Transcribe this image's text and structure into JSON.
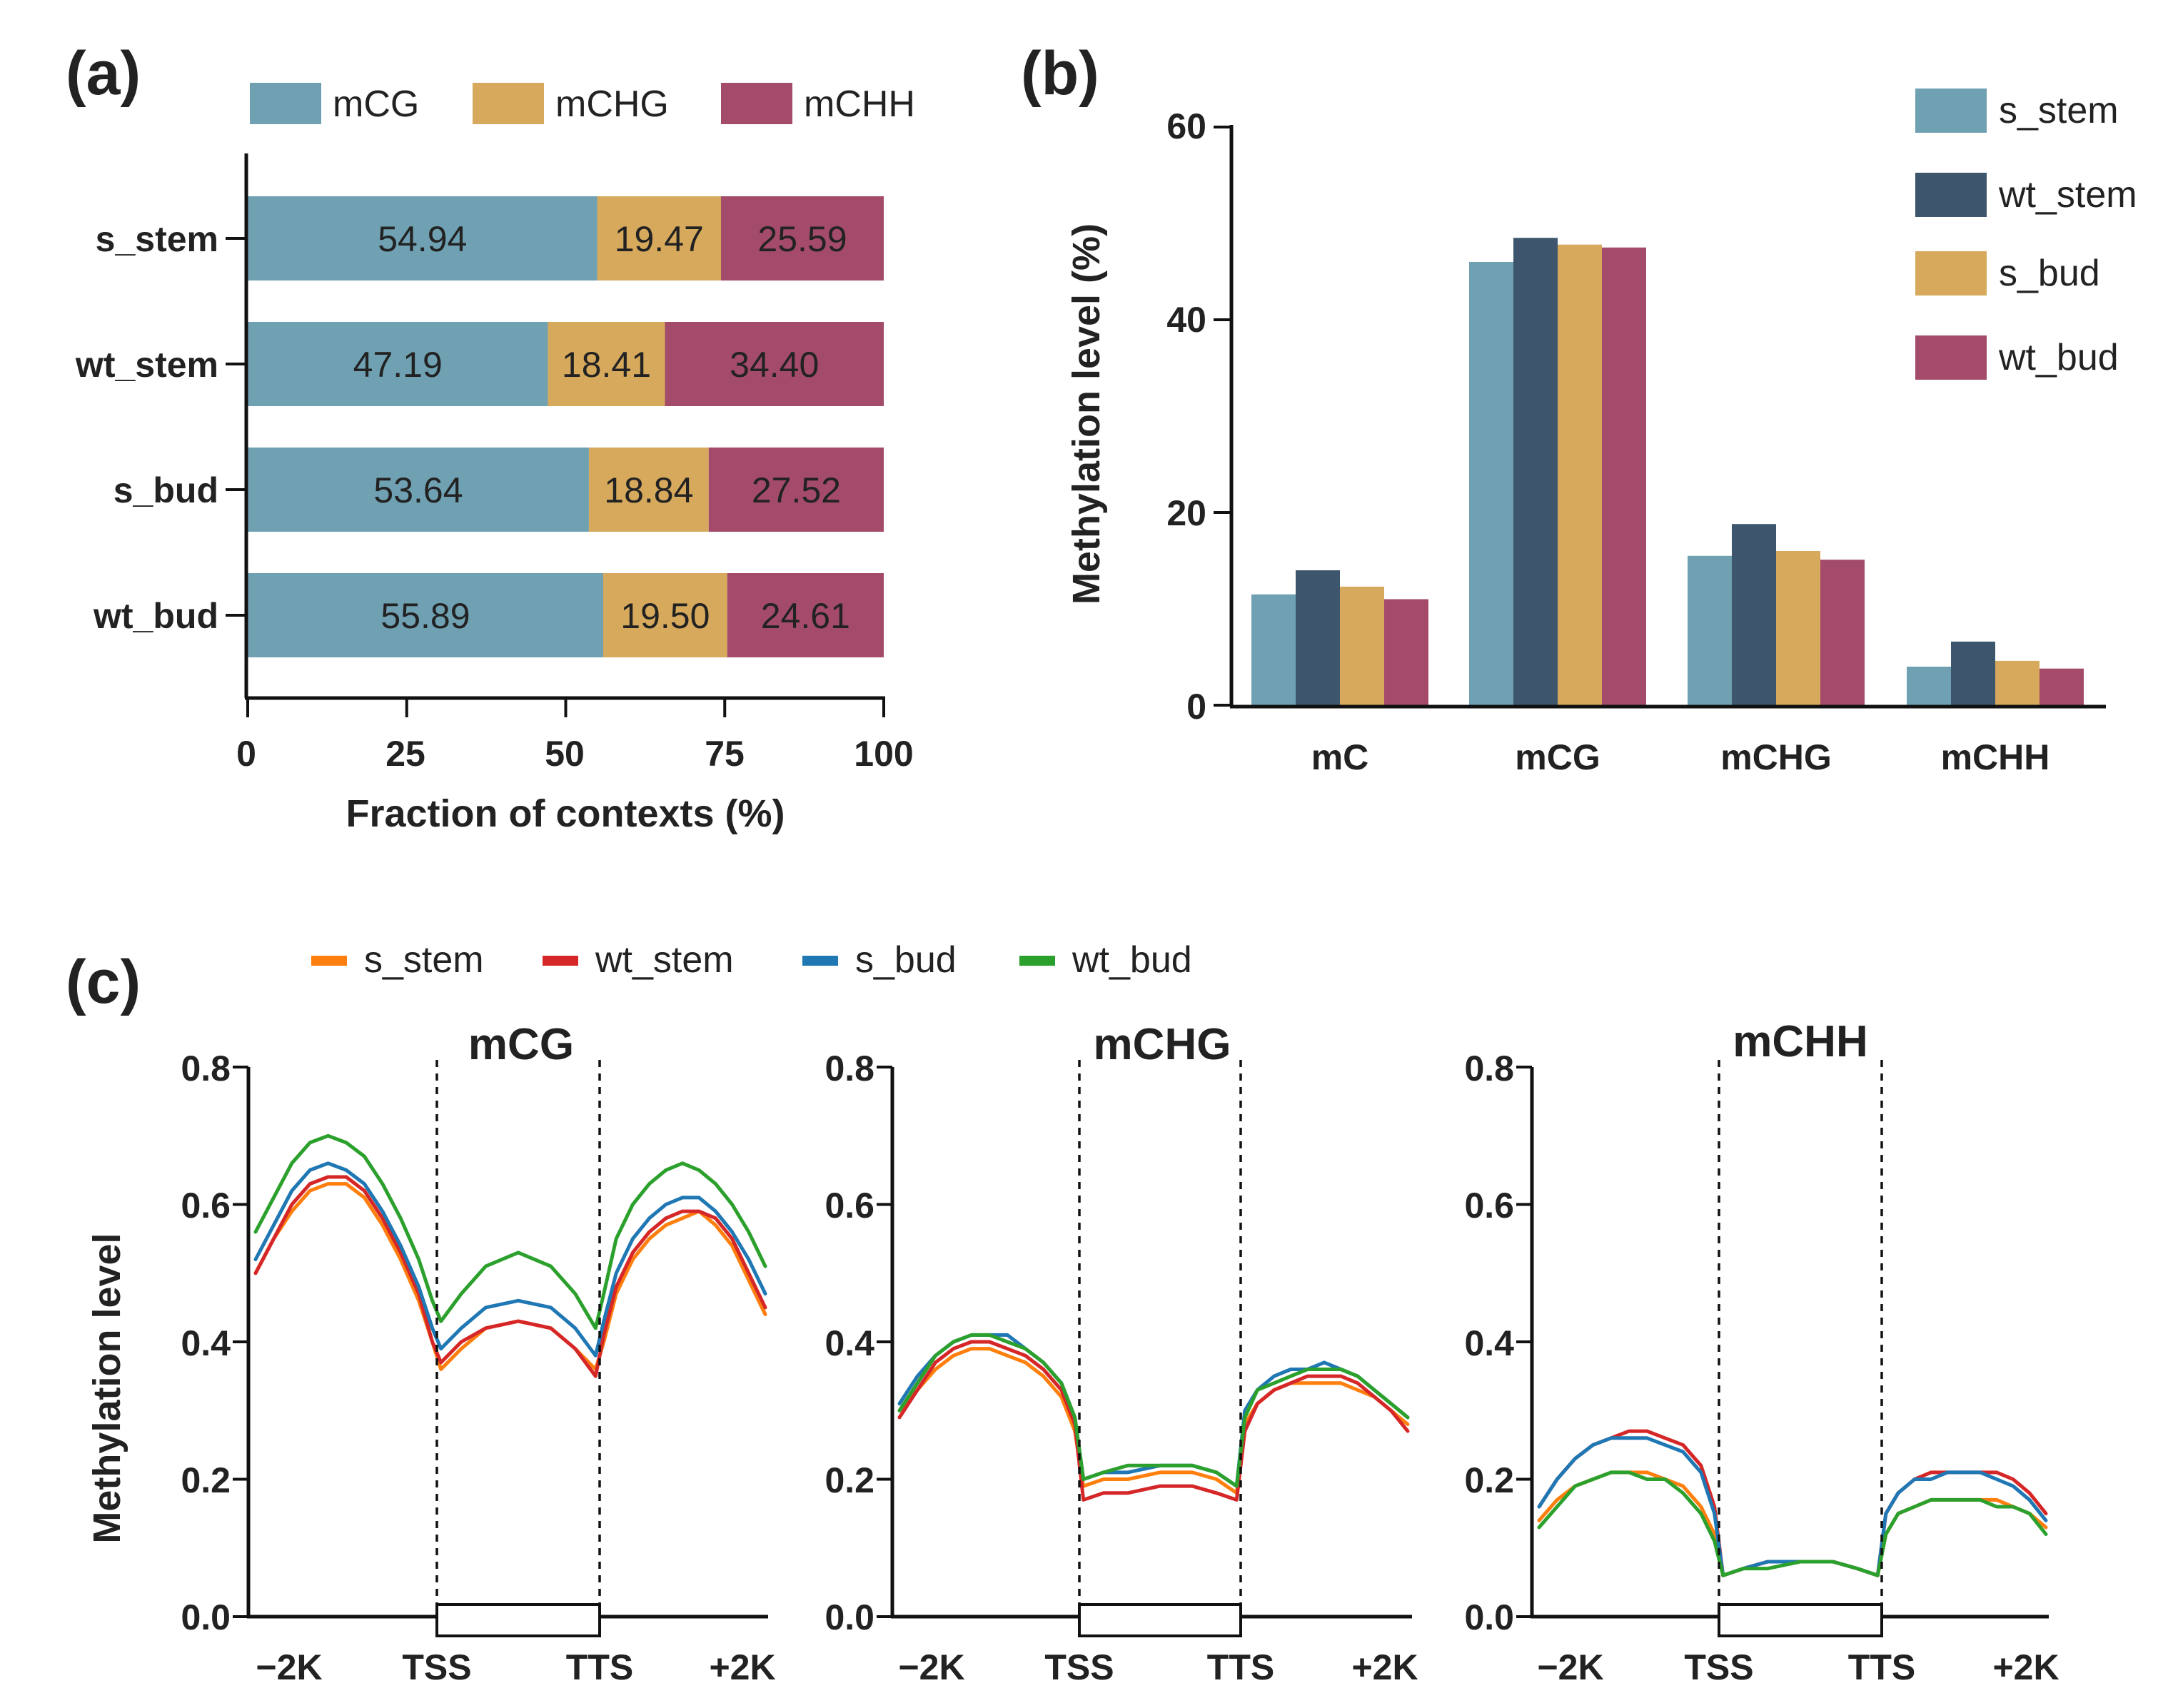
{
  "colors": {
    "mCG": "#6fa1b3",
    "mCHG": "#d6a95c",
    "mCHH": "#a44b6b",
    "s_stem": "#6fa1b3",
    "wt_stem": "#3d566d",
    "s_bud": "#d6a95c",
    "wt_bud": "#a44b6b",
    "line_s_stem": "#ff7f0e",
    "line_wt_stem": "#d62728",
    "line_s_bud": "#1f77b4",
    "line_wt_bud": "#2ca02c"
  },
  "chart_data": [
    {
      "panel": "(a)",
      "type": "bar",
      "orientation": "horizontal",
      "stacked": true,
      "categories": [
        "s_stem",
        "wt_stem",
        "s_bud",
        "wt_bud"
      ],
      "series": [
        {
          "name": "mCG",
          "values": [
            54.94,
            47.19,
            53.64,
            55.89
          ],
          "labels": [
            "54.94",
            "47.19",
            "53.64",
            "55.89"
          ]
        },
        {
          "name": "mCHG",
          "values": [
            19.47,
            18.41,
            18.84,
            19.5
          ],
          "labels": [
            "19.47",
            "18.41",
            "18.84",
            "19.50"
          ]
        },
        {
          "name": "mCHH",
          "values": [
            25.59,
            34.4,
            27.52,
            24.61
          ],
          "labels": [
            "25.59",
            "34.40",
            "27.52",
            "24.61"
          ]
        }
      ],
      "xlabel": "Fraction of contexts (%)",
      "xlim": [
        0,
        100
      ],
      "xticks": [
        "0",
        "25",
        "50",
        "75",
        "100"
      ],
      "legend": "top"
    },
    {
      "panel": "(b)",
      "type": "bar",
      "categories": [
        "mC",
        "mCG",
        "mCHG",
        "mCHH"
      ],
      "series": [
        {
          "name": "s_stem",
          "values": [
            11.5,
            46.0,
            15.5,
            4.0
          ]
        },
        {
          "name": "wt_stem",
          "values": [
            14.0,
            48.5,
            18.8,
            6.6
          ]
        },
        {
          "name": "s_bud",
          "values": [
            12.3,
            47.8,
            16.0,
            4.6
          ]
        },
        {
          "name": "wt_bud",
          "values": [
            11.0,
            47.5,
            15.1,
            3.8
          ]
        }
      ],
      "ylabel": "Methylation level (%)",
      "ylim": [
        0,
        60
      ],
      "yticks": [
        "0",
        "20",
        "40",
        "60"
      ],
      "legend": "top-right"
    },
    {
      "panel": "(c)",
      "type": "line",
      "legend": "top",
      "series_names": [
        "s_stem",
        "wt_stem",
        "s_bud",
        "wt_bud"
      ],
      "ylabel": "Methylation level",
      "ylim": [
        0,
        0.8
      ],
      "yticks": [
        "0.0",
        "0.2",
        "0.4",
        "0.6",
        "0.8"
      ],
      "xticks": [
        "−2K",
        "TSS",
        "TTS",
        "+2K"
      ],
      "x": [
        0,
        0.2,
        0.4,
        0.6,
        0.8,
        1.0,
        1.2,
        1.4,
        1.6,
        1.8,
        1.95,
        2.05,
        2.3,
        2.6,
        3.0,
        3.4,
        3.7,
        3.95,
        4.05,
        4.2,
        4.4,
        4.6,
        4.8,
        5.0,
        5.2,
        5.4,
        5.6,
        5.8,
        6.0
      ],
      "subplots": [
        {
          "title": "mCG",
          "series": [
            {
              "name": "s_stem",
              "values": [
                0.5,
                0.55,
                0.59,
                0.62,
                0.63,
                0.63,
                0.61,
                0.57,
                0.52,
                0.46,
                0.4,
                0.36,
                0.39,
                0.42,
                0.43,
                0.42,
                0.39,
                0.36,
                0.4,
                0.47,
                0.52,
                0.55,
                0.57,
                0.58,
                0.59,
                0.57,
                0.54,
                0.49,
                0.44
              ]
            },
            {
              "name": "wt_stem",
              "values": [
                0.5,
                0.55,
                0.6,
                0.63,
                0.64,
                0.64,
                0.62,
                0.58,
                0.53,
                0.47,
                0.4,
                0.37,
                0.4,
                0.42,
                0.43,
                0.42,
                0.39,
                0.35,
                0.41,
                0.48,
                0.53,
                0.56,
                0.58,
                0.59,
                0.59,
                0.58,
                0.55,
                0.5,
                0.45
              ]
            },
            {
              "name": "s_bud",
              "values": [
                0.52,
                0.57,
                0.62,
                0.65,
                0.66,
                0.65,
                0.63,
                0.59,
                0.54,
                0.48,
                0.42,
                0.39,
                0.42,
                0.45,
                0.46,
                0.45,
                0.42,
                0.38,
                0.43,
                0.5,
                0.55,
                0.58,
                0.6,
                0.61,
                0.61,
                0.59,
                0.56,
                0.52,
                0.47
              ]
            },
            {
              "name": "wt_bud",
              "values": [
                0.56,
                0.61,
                0.66,
                0.69,
                0.7,
                0.69,
                0.67,
                0.63,
                0.58,
                0.52,
                0.46,
                0.43,
                0.47,
                0.51,
                0.53,
                0.51,
                0.47,
                0.42,
                0.47,
                0.55,
                0.6,
                0.63,
                0.65,
                0.66,
                0.65,
                0.63,
                0.6,
                0.56,
                0.51
              ]
            }
          ]
        },
        {
          "title": "mCHG",
          "series": [
            {
              "name": "s_stem",
              "values": [
                0.3,
                0.33,
                0.36,
                0.38,
                0.39,
                0.39,
                0.38,
                0.37,
                0.35,
                0.32,
                0.27,
                0.19,
                0.2,
                0.2,
                0.21,
                0.21,
                0.2,
                0.18,
                0.28,
                0.31,
                0.33,
                0.34,
                0.34,
                0.34,
                0.34,
                0.33,
                0.32,
                0.3,
                0.28
              ]
            },
            {
              "name": "wt_stem",
              "values": [
                0.29,
                0.33,
                0.37,
                0.39,
                0.4,
                0.4,
                0.39,
                0.38,
                0.36,
                0.33,
                0.28,
                0.17,
                0.18,
                0.18,
                0.19,
                0.19,
                0.18,
                0.17,
                0.27,
                0.31,
                0.33,
                0.34,
                0.35,
                0.35,
                0.35,
                0.34,
                0.32,
                0.3,
                0.27
              ]
            },
            {
              "name": "s_bud",
              "values": [
                0.31,
                0.35,
                0.38,
                0.4,
                0.41,
                0.41,
                0.41,
                0.39,
                0.37,
                0.34,
                0.29,
                0.2,
                0.21,
                0.21,
                0.22,
                0.22,
                0.21,
                0.19,
                0.3,
                0.33,
                0.35,
                0.36,
                0.36,
                0.37,
                0.36,
                0.35,
                0.33,
                0.31,
                0.29
              ]
            },
            {
              "name": "wt_bud",
              "values": [
                0.3,
                0.34,
                0.38,
                0.4,
                0.41,
                0.41,
                0.4,
                0.39,
                0.37,
                0.34,
                0.29,
                0.2,
                0.21,
                0.22,
                0.22,
                0.22,
                0.21,
                0.19,
                0.29,
                0.33,
                0.34,
                0.35,
                0.36,
                0.36,
                0.36,
                0.35,
                0.33,
                0.31,
                0.29
              ]
            }
          ]
        },
        {
          "title": "mCHH",
          "series": [
            {
              "name": "s_stem",
              "values": [
                0.14,
                0.17,
                0.19,
                0.2,
                0.21,
                0.21,
                0.21,
                0.2,
                0.19,
                0.16,
                0.12,
                0.06,
                0.07,
                0.08,
                0.08,
                0.08,
                0.07,
                0.06,
                0.12,
                0.15,
                0.16,
                0.17,
                0.17,
                0.17,
                0.17,
                0.17,
                0.16,
                0.15,
                0.13
              ]
            },
            {
              "name": "wt_stem",
              "values": [
                0.16,
                0.2,
                0.23,
                0.25,
                0.26,
                0.27,
                0.27,
                0.26,
                0.25,
                0.22,
                0.16,
                0.06,
                0.07,
                0.08,
                0.08,
                0.08,
                0.07,
                0.06,
                0.15,
                0.18,
                0.2,
                0.21,
                0.21,
                0.21,
                0.21,
                0.21,
                0.2,
                0.18,
                0.15
              ]
            },
            {
              "name": "s_bud",
              "values": [
                0.16,
                0.2,
                0.23,
                0.25,
                0.26,
                0.26,
                0.26,
                0.25,
                0.24,
                0.21,
                0.15,
                0.06,
                0.07,
                0.08,
                0.08,
                0.08,
                0.07,
                0.06,
                0.15,
                0.18,
                0.2,
                0.2,
                0.21,
                0.21,
                0.21,
                0.2,
                0.19,
                0.17,
                0.14
              ]
            },
            {
              "name": "wt_bud",
              "values": [
                0.13,
                0.16,
                0.19,
                0.2,
                0.21,
                0.21,
                0.2,
                0.2,
                0.18,
                0.15,
                0.11,
                0.06,
                0.07,
                0.07,
                0.08,
                0.08,
                0.07,
                0.06,
                0.12,
                0.15,
                0.16,
                0.17,
                0.17,
                0.17,
                0.17,
                0.16,
                0.16,
                0.15,
                0.12
              ]
            }
          ]
        }
      ]
    }
  ]
}
